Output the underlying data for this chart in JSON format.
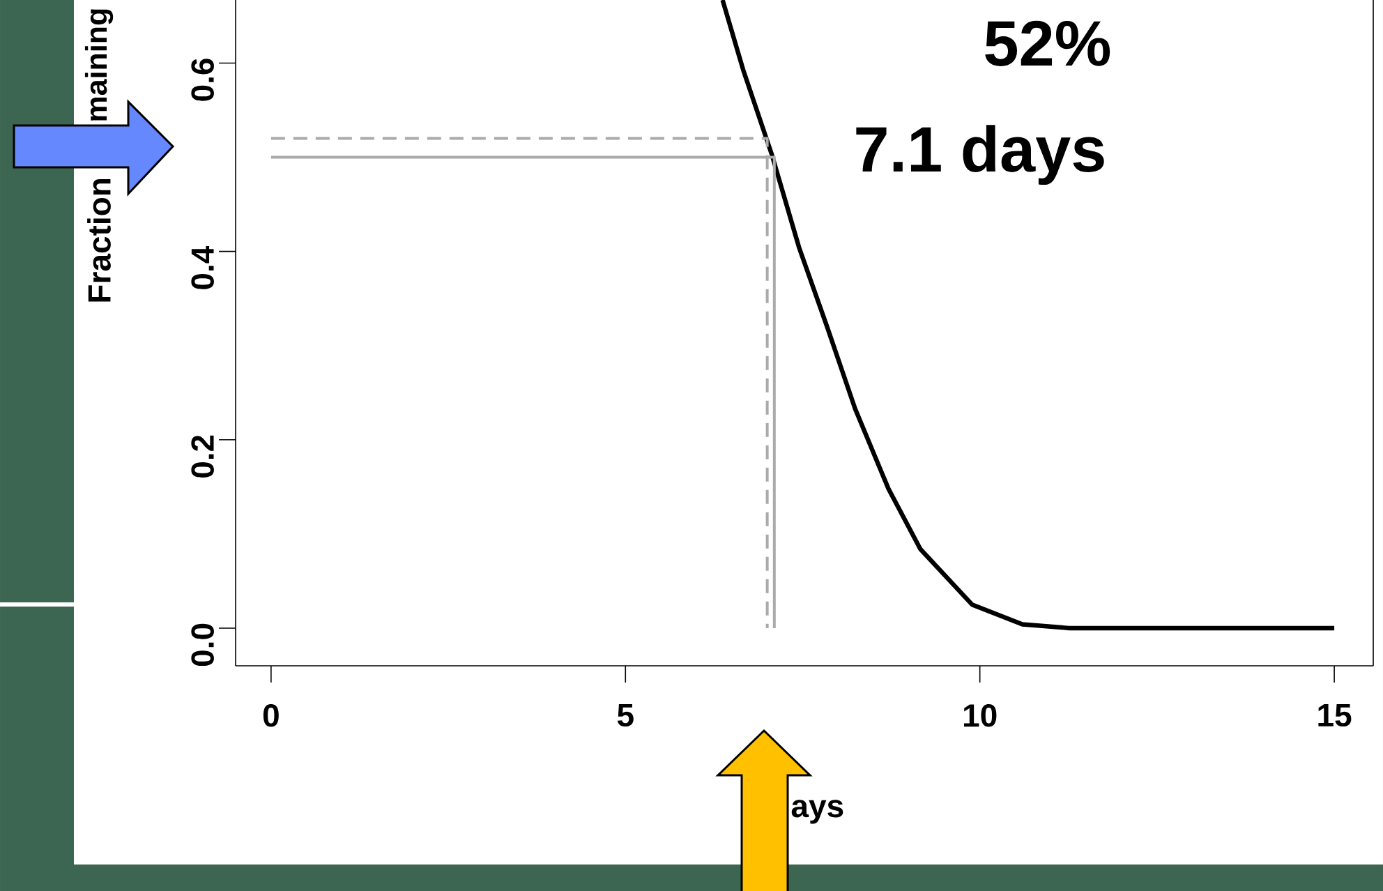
{
  "chart_data": {
    "type": "line",
    "xlabel": "ays",
    "ylabel": "Fraction",
    "annotations": [
      "52%",
      "7.1 days",
      "maining"
    ],
    "xlim": [
      -0.5,
      15.55
    ],
    "ylim": [
      -0.04,
      0.667
    ],
    "xticks": [
      0,
      5,
      10,
      15
    ],
    "yticks": [
      {
        "value": 0,
        "label": "0.0"
      },
      {
        "value": 0.2,
        "label": "0.2"
      },
      {
        "value": 0.4,
        "label": "0.4"
      },
      {
        "value": 0.6,
        "label": "0.6"
      }
    ],
    "series": [
      {
        "x": [
          6.37,
          6.66,
          7.06,
          7.45,
          7.84,
          8.24,
          8.71,
          9.16,
          9.89,
          10.6,
          11.26,
          15
        ],
        "values": [
          0.667,
          0.593,
          0.504,
          0.404,
          0.321,
          0.233,
          0.148,
          0.084,
          0.025,
          0.004,
          0,
          0
        ],
        "color": "#000000"
      },
      {
        "x": [
          0,
          7.1,
          7.1
        ],
        "values": [
          0.5,
          0.5,
          0
        ],
        "color": "#aaaaaa",
        "line_style": "solid"
      },
      {
        "x": [
          0,
          7.0,
          7.0
        ],
        "values": [
          0.52,
          0.52,
          0
        ],
        "color": "#aaaaaa",
        "line_style": "dashed"
      }
    ],
    "grid": false,
    "marker": "none",
    "line_style": "solid"
  }
}
